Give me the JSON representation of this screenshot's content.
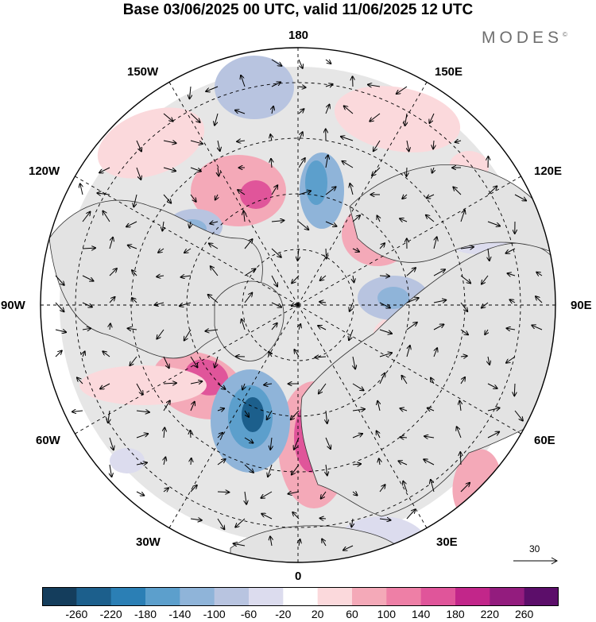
{
  "header": {
    "title": "Base 03/06/2025 00 UTC, valid 11/06/2025 12 UTC",
    "brand": "MODES",
    "brand_mark": "©"
  },
  "map": {
    "projection": "north polar stereographic",
    "longitude_labels": [
      "180",
      "150E",
      "120E",
      "90E",
      "60E",
      "30E",
      "0",
      "30W",
      "60W",
      "90W",
      "120W",
      "150W"
    ],
    "reference_vector": {
      "value": "30"
    }
  },
  "colorbar": {
    "ticks": [
      "-260",
      "-220",
      "-180",
      "-140",
      "-100",
      "-60",
      "-20",
      "20",
      "60",
      "100",
      "140",
      "180",
      "220",
      "260"
    ],
    "colors": [
      "#143d5c",
      "#1c5f8c",
      "#2b7fb5",
      "#5c9fcc",
      "#8fb4d9",
      "#b8c4e0",
      "#dcdcee",
      "#ffffff",
      "#fbd9dc",
      "#f4a9b8",
      "#ee7fa6",
      "#e0559a",
      "#c2268a",
      "#931c7e",
      "#5c0e6a"
    ]
  }
}
